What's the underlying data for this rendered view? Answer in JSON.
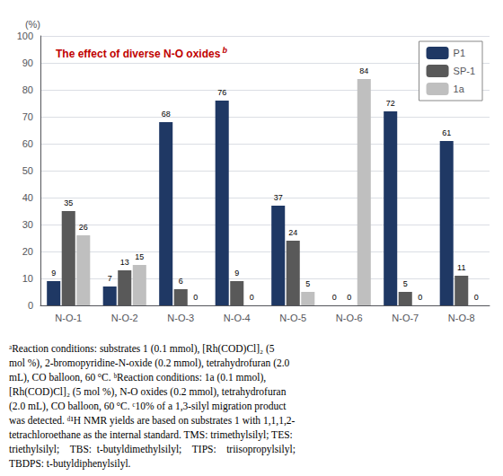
{
  "chart_data": {
    "type": "bar",
    "title": "The effect of diverse N-O oxides",
    "title_superscript": "b",
    "y_label": "(%)",
    "categories": [
      "N-O-1",
      "N-O-2",
      "N-O-3",
      "N-O-4",
      "N-O-5",
      "N-O-6",
      "N-O-7",
      "N-O-8"
    ],
    "series": [
      {
        "name": "P1",
        "color": "#1f3864",
        "values": [
          9,
          7,
          68,
          76,
          37,
          0,
          72,
          61
        ]
      },
      {
        "name": "SP-1",
        "color": "#595959",
        "values": [
          35,
          13,
          6,
          9,
          24,
          0,
          5,
          11
        ]
      },
      {
        "name": "1a",
        "color": "#bfbfbf",
        "values": [
          26,
          15,
          0,
          0,
          5,
          84,
          0,
          0
        ]
      }
    ],
    "ylim": [
      0,
      100
    ],
    "yticks": [
      0,
      10,
      20,
      30,
      40,
      50,
      60,
      70,
      80,
      90,
      100
    ],
    "grid": true,
    "legend": "upper right",
    "data_labels": true,
    "footnote": "ᵃReaction conditions: substrates 1 (0.1 mmol), [Rh(COD)Cl]₂ (5\nmol %), 2-bromopyridine-N-oxide (0.2 mmol), tetrahydrofuran (2.0\nmL), CO balloon, 60 °C. ᵇReaction conditions: 1a (0.1 mmol),\n[Rh(COD)Cl]₂ (5 mol %), N-O oxides (0.2 mmol), tetrahydrofuran\n(2.0 mL), CO balloon, 60 °C. ᶜ10% of a 1,3-silyl migration product\nwas detected. ᵈ¹H NMR yields are based on substrates 1 with 1,1,1,2-\ntetrachloroethane as the internal standard. TMS: trimethylsilyl; TES:\ntriethylsilyl;  TBS: t-butyldimethylsilyl;  TIPS:  triisopropylsilyl;\nTBDPS: t-butyldiphenylsilyl."
  }
}
